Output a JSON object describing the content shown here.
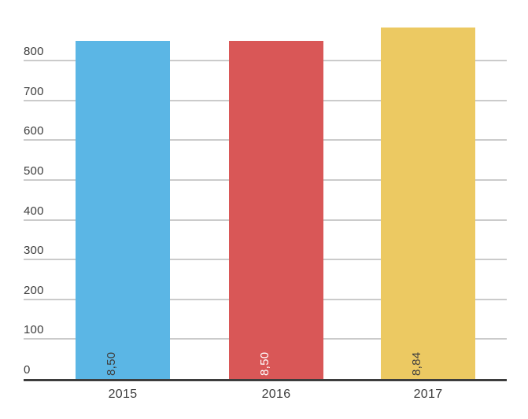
{
  "chart_data": {
    "type": "bar",
    "title": "",
    "xlabel": "",
    "ylabel": "",
    "categories": [
      "2015",
      "2016",
      "2017"
    ],
    "values": [
      850,
      850,
      884
    ],
    "value_labels": [
      "8,50",
      "8,50",
      "8,84"
    ],
    "bar_colors": [
      "#5bb6e5",
      "#d95757",
      "#ecc962"
    ],
    "value_label_colors": [
      "#3f3f3f",
      "#ffffff",
      "#3f3f3f"
    ],
    "y_ticks": [
      0,
      100,
      200,
      300,
      400,
      500,
      600,
      700,
      800
    ],
    "ylim": [
      0,
      900
    ],
    "grid": true,
    "legend": "none",
    "colors": {
      "gridline": "#cbcbcb",
      "baseline": "#3d3d3d",
      "tick_label": "#3c3c3c",
      "background": "#ffffff"
    }
  }
}
